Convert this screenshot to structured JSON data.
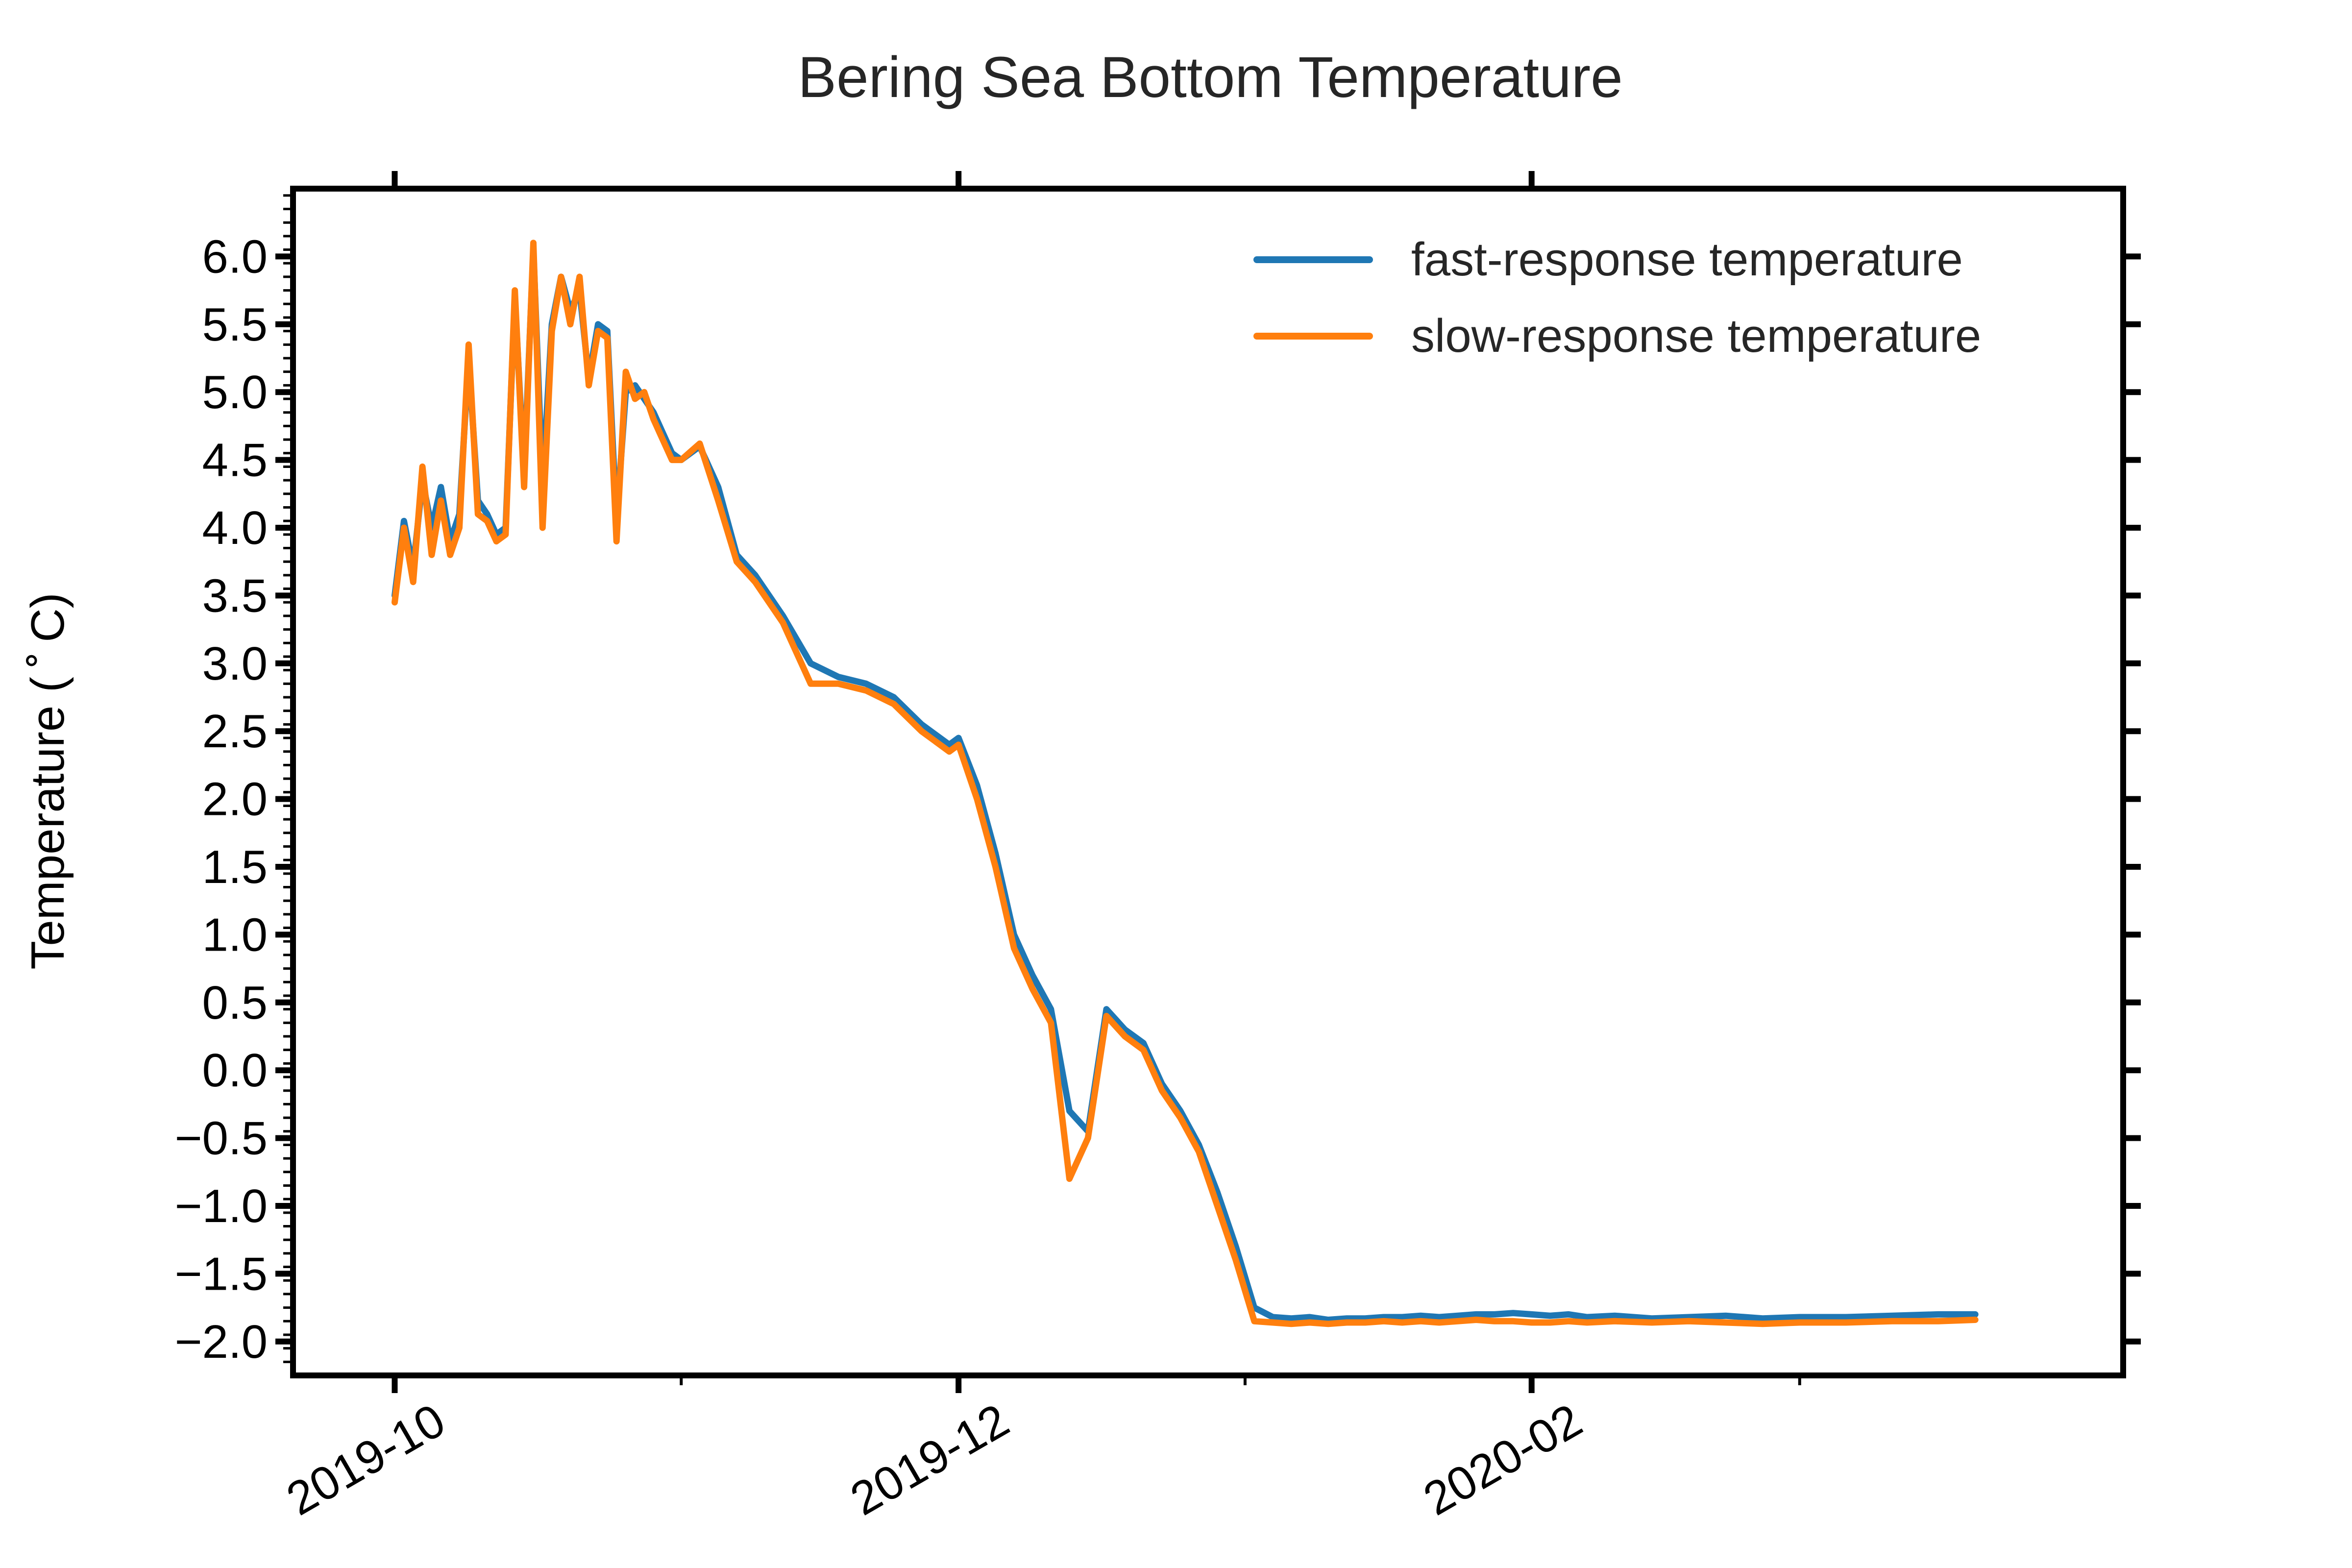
{
  "chart_data": {
    "type": "line",
    "title": "Bering Sea Bottom Temperature",
    "xlabel": "",
    "ylabel": "Temperature ($^\\circ$C)",
    "ylabel_display": "Temperature ( ˚ C)",
    "x_axis": {
      "type": "date",
      "range": [
        "2019-09-20",
        "2020-04-05"
      ],
      "major_ticks": [
        "2019-10-01",
        "2019-12-01",
        "2020-02-01"
      ],
      "major_tick_labels": [
        "2019-10",
        "2019-12",
        "2020-02"
      ],
      "minor_ticks": [
        "2019-11-01",
        "2020-01-01",
        "2020-03-01"
      ]
    },
    "y_axis": {
      "range": [
        -2.25,
        6.5
      ],
      "major_ticks": [
        -2.0,
        -1.5,
        -1.0,
        -0.5,
        0.0,
        0.5,
        1.0,
        1.5,
        2.0,
        2.5,
        3.0,
        3.5,
        4.0,
        4.5,
        5.0,
        5.5,
        6.0
      ],
      "major_tick_labels": [
        "−2.0",
        "−1.5",
        "−1.0",
        "−0.5",
        "0.0",
        "0.5",
        "1.0",
        "1.5",
        "2.0",
        "2.5",
        "3.0",
        "3.5",
        "4.0",
        "4.5",
        "5.0",
        "5.5",
        "6.0"
      ],
      "minor_step": 0.1
    },
    "grid": false,
    "legend_position": "top-right",
    "series": [
      {
        "name": "fast-response temperature",
        "color": "#1f77b4",
        "x": [
          "2019-10-01",
          "2019-10-02",
          "2019-10-03",
          "2019-10-04",
          "2019-10-05",
          "2019-10-06",
          "2019-10-07",
          "2019-10-08",
          "2019-10-09",
          "2019-10-10",
          "2019-10-11",
          "2019-10-12",
          "2019-10-13",
          "2019-10-14",
          "2019-10-15",
          "2019-10-16",
          "2019-10-17",
          "2019-10-18",
          "2019-10-19",
          "2019-10-20",
          "2019-10-21",
          "2019-10-22",
          "2019-10-23",
          "2019-10-24",
          "2019-10-25",
          "2019-10-26",
          "2019-10-27",
          "2019-10-28",
          "2019-10-29",
          "2019-10-30",
          "2019-10-31",
          "2019-11-01",
          "2019-11-03",
          "2019-11-05",
          "2019-11-07",
          "2019-11-09",
          "2019-11-12",
          "2019-11-15",
          "2019-11-18",
          "2019-11-21",
          "2019-11-24",
          "2019-11-27",
          "2019-11-30",
          "2019-12-01",
          "2019-12-03",
          "2019-12-05",
          "2019-12-07",
          "2019-12-09",
          "2019-12-11",
          "2019-12-13",
          "2019-12-15",
          "2019-12-17",
          "2019-12-19",
          "2019-12-21",
          "2019-12-23",
          "2019-12-25",
          "2019-12-27",
          "2019-12-29",
          "2019-12-31",
          "2020-01-02",
          "2020-01-04",
          "2020-01-06",
          "2020-01-08",
          "2020-01-10",
          "2020-01-12",
          "2020-01-14",
          "2020-01-16",
          "2020-01-18",
          "2020-01-20",
          "2020-01-22",
          "2020-01-24",
          "2020-01-26",
          "2020-01-28",
          "2020-01-30",
          "2020-02-01",
          "2020-02-03",
          "2020-02-05",
          "2020-02-07",
          "2020-02-10",
          "2020-02-14",
          "2020-02-18",
          "2020-02-22",
          "2020-02-26",
          "2020-03-01",
          "2020-03-06",
          "2020-03-11",
          "2020-03-16",
          "2020-03-20"
        ],
        "y": [
          3.5,
          4.05,
          3.7,
          4.35,
          4.0,
          4.3,
          3.9,
          4.1,
          5.25,
          4.2,
          4.1,
          3.95,
          4.0,
          5.7,
          4.4,
          6.05,
          4.3,
          5.5,
          5.85,
          5.6,
          5.75,
          5.1,
          5.5,
          5.45,
          4.05,
          5.0,
          5.05,
          4.95,
          4.85,
          4.7,
          4.55,
          4.5,
          4.6,
          4.3,
          3.8,
          3.65,
          3.35,
          3.0,
          2.9,
          2.85,
          2.75,
          2.55,
          2.4,
          2.45,
          2.1,
          1.6,
          1.0,
          0.7,
          0.45,
          -0.3,
          -0.45,
          0.45,
          0.3,
          0.2,
          -0.1,
          -0.3,
          -0.55,
          -0.9,
          -1.3,
          -1.75,
          -1.82,
          -1.83,
          -1.82,
          -1.84,
          -1.83,
          -1.83,
          -1.82,
          -1.82,
          -1.81,
          -1.82,
          -1.81,
          -1.8,
          -1.8,
          -1.79,
          -1.8,
          -1.81,
          -1.8,
          -1.82,
          -1.81,
          -1.83,
          -1.82,
          -1.81,
          -1.83,
          -1.82,
          -1.82,
          -1.81,
          -1.8,
          -1.8
        ]
      },
      {
        "name": "slow-response temperature",
        "color": "#ff7f0e",
        "x": [
          "2019-10-01",
          "2019-10-02",
          "2019-10-03",
          "2019-10-04",
          "2019-10-05",
          "2019-10-06",
          "2019-10-07",
          "2019-10-08",
          "2019-10-09",
          "2019-10-10",
          "2019-10-11",
          "2019-10-12",
          "2019-10-13",
          "2019-10-14",
          "2019-10-15",
          "2019-10-16",
          "2019-10-17",
          "2019-10-18",
          "2019-10-19",
          "2019-10-20",
          "2019-10-21",
          "2019-10-22",
          "2019-10-23",
          "2019-10-24",
          "2019-10-25",
          "2019-10-26",
          "2019-10-27",
          "2019-10-28",
          "2019-10-29",
          "2019-10-30",
          "2019-10-31",
          "2019-11-01",
          "2019-11-03",
          "2019-11-05",
          "2019-11-07",
          "2019-11-09",
          "2019-11-12",
          "2019-11-15",
          "2019-11-18",
          "2019-11-21",
          "2019-11-24",
          "2019-11-27",
          "2019-11-30",
          "2019-12-01",
          "2019-12-03",
          "2019-12-05",
          "2019-12-07",
          "2019-12-09",
          "2019-12-11",
          "2019-12-13",
          "2019-12-15",
          "2019-12-17",
          "2019-12-19",
          "2019-12-21",
          "2019-12-23",
          "2019-12-25",
          "2019-12-27",
          "2019-12-29",
          "2019-12-31",
          "2020-01-02",
          "2020-01-04",
          "2020-01-06",
          "2020-01-08",
          "2020-01-10",
          "2020-01-12",
          "2020-01-14",
          "2020-01-16",
          "2020-01-18",
          "2020-01-20",
          "2020-01-22",
          "2020-01-24",
          "2020-01-26",
          "2020-01-28",
          "2020-01-30",
          "2020-02-01",
          "2020-02-03",
          "2020-02-05",
          "2020-02-07",
          "2020-02-10",
          "2020-02-14",
          "2020-02-18",
          "2020-02-22",
          "2020-02-26",
          "2020-03-01",
          "2020-03-06",
          "2020-03-11",
          "2020-03-16",
          "2020-03-20"
        ],
        "y": [
          3.45,
          4.0,
          3.6,
          4.45,
          3.8,
          4.2,
          3.8,
          4.0,
          5.35,
          4.1,
          4.05,
          3.9,
          3.95,
          5.75,
          4.3,
          6.1,
          4.0,
          5.45,
          5.85,
          5.5,
          5.85,
          5.05,
          5.45,
          5.4,
          3.9,
          5.15,
          4.95,
          5.0,
          4.8,
          4.65,
          4.5,
          4.5,
          4.62,
          4.2,
          3.75,
          3.6,
          3.3,
          2.85,
          2.85,
          2.8,
          2.7,
          2.5,
          2.35,
          2.4,
          2.0,
          1.5,
          0.9,
          0.6,
          0.35,
          -0.8,
          -0.5,
          0.4,
          0.25,
          0.15,
          -0.15,
          -0.35,
          -0.6,
          -1.0,
          -1.4,
          -1.85,
          -1.86,
          -1.87,
          -1.86,
          -1.87,
          -1.86,
          -1.86,
          -1.85,
          -1.86,
          -1.85,
          -1.86,
          -1.85,
          -1.84,
          -1.85,
          -1.85,
          -1.86,
          -1.86,
          -1.85,
          -1.86,
          -1.85,
          -1.86,
          -1.85,
          -1.86,
          -1.87,
          -1.86,
          -1.86,
          -1.85,
          -1.85,
          -1.84
        ]
      }
    ]
  }
}
